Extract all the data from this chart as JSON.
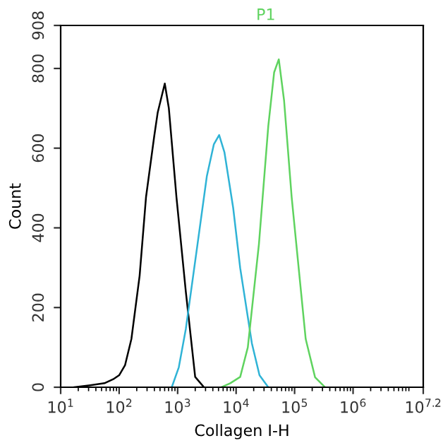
{
  "chart_data": {
    "type": "line",
    "xlabel": "Collagen I-H",
    "ylabel": "Count",
    "log": "x",
    "annotations": [
      "P1"
    ],
    "xlim": [
      10,
      15848932
    ],
    "ylim": [
      0,
      908
    ],
    "xticks": [
      {
        "value": 10,
        "label": "10$^{1}$"
      },
      {
        "value": 100,
        "label": "10$^{2}$"
      },
      {
        "value": 1000,
        "label": "10$^{3}$"
      },
      {
        "value": 10000,
        "label": "10$^{4}$"
      },
      {
        "value": 100000,
        "label": "10$^{5}$"
      },
      {
        "value": 1000000,
        "label": "10$^{6}$"
      },
      {
        "value": 15848932,
        "label": "10$^{7.2}$"
      }
    ],
    "yticks": [
      0,
      200,
      400,
      600,
      800,
      908
    ],
    "grid": false,
    "marker": "none",
    "line_style": "solid",
    "series": [
      {
        "color": "#000000",
        "x": [
          17,
          32,
          56,
          79,
          100,
          126,
          162,
          224,
          288,
          398,
          457,
          603,
          708,
          955,
          1380,
          1995,
          2818
        ],
        "values": [
          0,
          5,
          10,
          20,
          30,
          55,
          121,
          280,
          477,
          630,
          690,
          762,
          700,
          477,
          240,
          26,
          0
        ]
      },
      {
        "color": "#2fb3d6",
        "x": [
          794,
          1047,
          1380,
          2188,
          3162,
          4169,
          5129,
          6310,
          8913,
          11750,
          18620,
          25120,
          35480
        ],
        "values": [
          0,
          50,
          146,
          359,
          530,
          610,
          633,
          590,
          450,
          299,
          110,
          30,
          0
        ]
      },
      {
        "color": "#5fd35f",
        "x": [
          5623,
          7943,
          11750,
          15850,
          24550,
          35480,
          44670,
          53700,
          66070,
          89130,
          154900,
          223900,
          331100
        ],
        "values": [
          0,
          10,
          26,
          100,
          359,
          655,
          790,
          823,
          720,
          477,
          121,
          25,
          0
        ]
      }
    ]
  }
}
